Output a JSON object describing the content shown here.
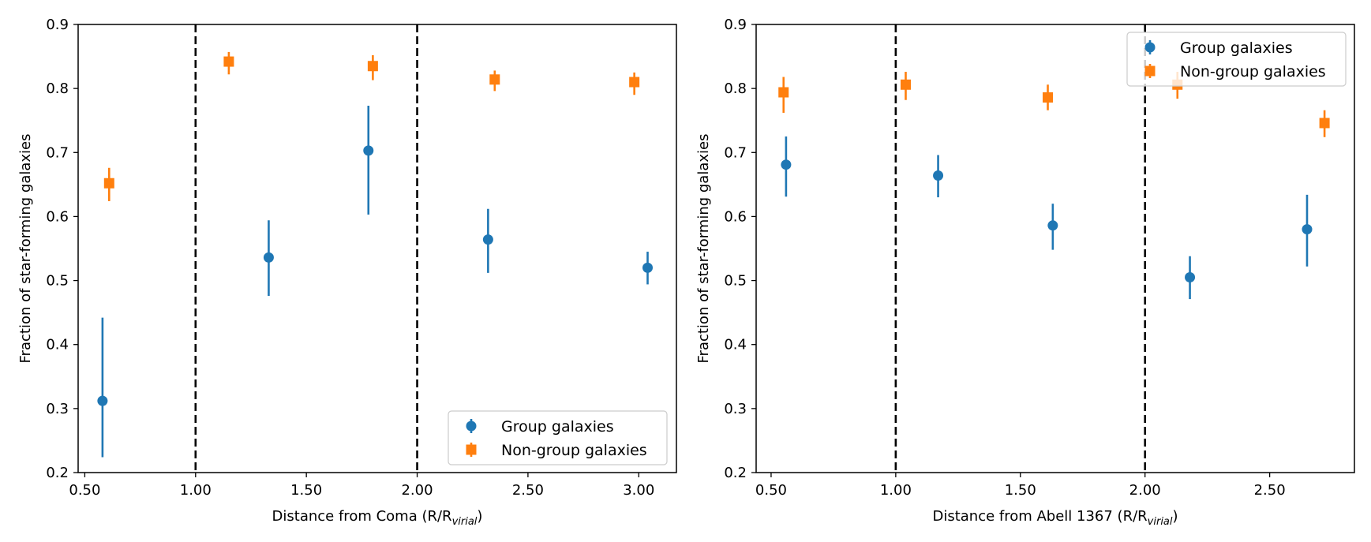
{
  "chart_data": [
    {
      "type": "scatter",
      "xlabel_prefix": "Distance from Coma (R/R",
      "xlabel_sub": "virial",
      "xlabel_suffix": ")",
      "ylabel": "Fraction of star-forming galaxies",
      "xlim": [
        0.47,
        3.17
      ],
      "ylim": [
        0.2,
        0.9
      ],
      "xticks": [
        0.5,
        1.0,
        1.5,
        2.0,
        2.5,
        3.0
      ],
      "xtick_labels": [
        "0.50",
        "1.00",
        "1.50",
        "2.00",
        "2.50",
        "3.00"
      ],
      "yticks": [
        0.2,
        0.3,
        0.4,
        0.5,
        0.6,
        0.7,
        0.8,
        0.9
      ],
      "ytick_labels": [
        "0.2",
        "0.3",
        "0.4",
        "0.5",
        "0.6",
        "0.7",
        "0.8",
        "0.9"
      ],
      "vlines": [
        1.0,
        2.0
      ],
      "legend_position": "lower-right",
      "series": [
        {
          "name": "Group galaxies",
          "marker": "circle",
          "color": "#1f77b4",
          "x": [
            0.58,
            1.33,
            1.78,
            2.32,
            3.04
          ],
          "y": [
            0.312,
            0.536,
            0.703,
            0.564,
            0.52
          ],
          "yerr_low": [
            0.088,
            0.06,
            0.1,
            0.052,
            0.026
          ],
          "yerr_high": [
            0.13,
            0.058,
            0.07,
            0.048,
            0.025
          ]
        },
        {
          "name": "Non-group galaxies",
          "marker": "square",
          "color": "#ff7f0e",
          "x": [
            0.61,
            1.15,
            1.8,
            2.35,
            2.98
          ],
          "y": [
            0.652,
            0.842,
            0.835,
            0.814,
            0.81
          ],
          "yerr_low": [
            0.028,
            0.02,
            0.022,
            0.018,
            0.02
          ],
          "yerr_high": [
            0.024,
            0.015,
            0.017,
            0.014,
            0.015
          ]
        }
      ]
    },
    {
      "type": "scatter",
      "xlabel_prefix": "Distance from Abell 1367 (R/R",
      "xlabel_sub": "virial",
      "xlabel_suffix": ")",
      "ylabel": "Fraction of star-forming galaxies",
      "xlim": [
        0.44,
        2.84
      ],
      "ylim": [
        0.2,
        0.9
      ],
      "xticks": [
        0.5,
        1.0,
        1.5,
        2.0,
        2.5
      ],
      "xtick_labels": [
        "0.50",
        "1.00",
        "1.50",
        "2.00",
        "2.50"
      ],
      "yticks": [
        0.2,
        0.3,
        0.4,
        0.5,
        0.6,
        0.7,
        0.8,
        0.9
      ],
      "ytick_labels": [
        "0.2",
        "0.3",
        "0.4",
        "0.5",
        "0.6",
        "0.7",
        "0.8",
        "0.9"
      ],
      "vlines": [
        1.0,
        2.0
      ],
      "legend_position": "upper-right",
      "series": [
        {
          "name": "Group galaxies",
          "marker": "circle",
          "color": "#1f77b4",
          "x": [
            0.56,
            1.17,
            1.63,
            2.18,
            2.65
          ],
          "y": [
            0.681,
            0.664,
            0.586,
            0.505,
            0.58
          ],
          "yerr_low": [
            0.05,
            0.034,
            0.038,
            0.034,
            0.058
          ],
          "yerr_high": [
            0.044,
            0.032,
            0.034,
            0.033,
            0.054
          ]
        },
        {
          "name": "Non-group galaxies",
          "marker": "square",
          "color": "#ff7f0e",
          "x": [
            0.55,
            1.04,
            1.61,
            2.13,
            2.72
          ],
          "y": [
            0.794,
            0.806,
            0.786,
            0.806,
            0.746
          ],
          "yerr_low": [
            0.032,
            0.024,
            0.02,
            0.022,
            0.022
          ],
          "yerr_high": [
            0.024,
            0.02,
            0.02,
            0.02,
            0.02
          ]
        }
      ]
    }
  ]
}
